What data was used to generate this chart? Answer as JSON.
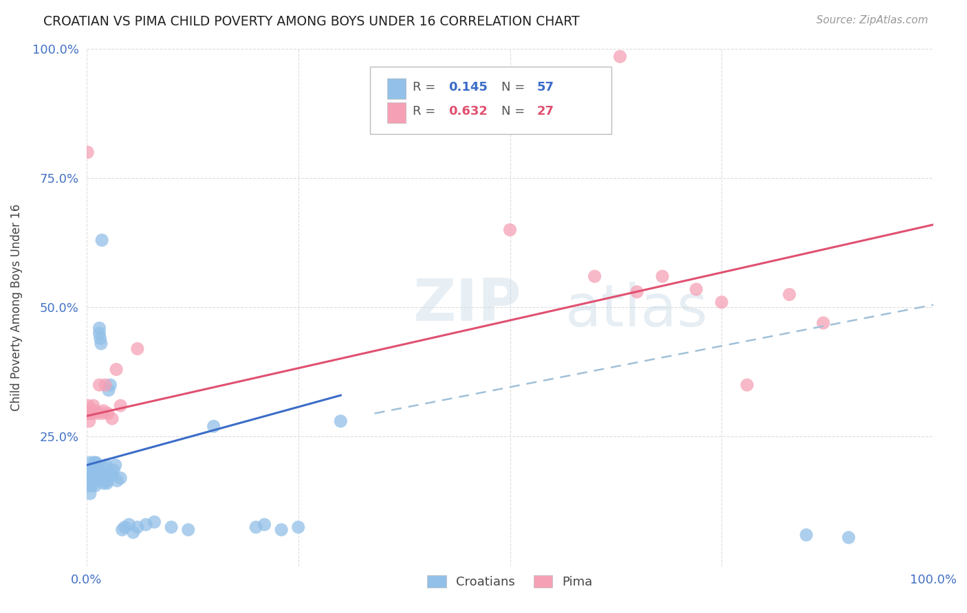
{
  "title": "CROATIAN VS PIMA CHILD POVERTY AMONG BOYS UNDER 16 CORRELATION CHART",
  "source": "Source: ZipAtlas.com",
  "ylabel": "Child Poverty Among Boys Under 16",
  "xlim": [
    0,
    1
  ],
  "ylim": [
    0,
    1
  ],
  "xticks": [
    0,
    0.25,
    0.5,
    0.75,
    1.0
  ],
  "yticks": [
    0,
    0.25,
    0.5,
    0.75,
    1.0
  ],
  "xticklabels": [
    "0.0%",
    "",
    "",
    "",
    "100.0%"
  ],
  "yticklabels": [
    "",
    "25.0%",
    "50.0%",
    "75.0%",
    "100.0%"
  ],
  "croatians_color": "#92C0E8",
  "pima_color": "#F5A0B5",
  "cr_line_color": "#3B6CC8",
  "pima_line_color": "#E05070",
  "dash_line_color": "#A0C0D8",
  "cr_R": "0.145",
  "cr_N": "57",
  "pima_R": "0.632",
  "pima_N": "27",
  "cr_line_x0": 0.0,
  "cr_line_y0": 0.195,
  "cr_line_x1": 0.3,
  "cr_line_y1": 0.33,
  "pima_line_x0": 0.0,
  "pima_line_y0": 0.29,
  "pima_line_x1": 1.0,
  "pima_line_y1": 0.66,
  "dash_line_x0": 0.34,
  "dash_line_y0": 0.295,
  "dash_line_x1": 1.0,
  "dash_line_y1": 0.505,
  "watermark_zip": "ZIP",
  "watermark_atlas": "atlas",
  "bg_color": "#FFFFFF",
  "grid_color": "#DDDDDD",
  "tick_color": "#4472C4",
  "cr_scatter_x": [
    0.002,
    0.003,
    0.004,
    0.004,
    0.005,
    0.005,
    0.006,
    0.007,
    0.008,
    0.008,
    0.009,
    0.009,
    0.01,
    0.01,
    0.011,
    0.012,
    0.012,
    0.013,
    0.013,
    0.014,
    0.015,
    0.015,
    0.016,
    0.017,
    0.018,
    0.019,
    0.02,
    0.021,
    0.022,
    0.023,
    0.024,
    0.025,
    0.026,
    0.027,
    0.028,
    0.03,
    0.032,
    0.034,
    0.036,
    0.04,
    0.042,
    0.045,
    0.05,
    0.055,
    0.06,
    0.07,
    0.08,
    0.1,
    0.12,
    0.15,
    0.2,
    0.21,
    0.23,
    0.25,
    0.3,
    0.85,
    0.9
  ],
  "cr_scatter_y": [
    0.155,
    0.175,
    0.14,
    0.2,
    0.165,
    0.185,
    0.155,
    0.175,
    0.165,
    0.19,
    0.175,
    0.2,
    0.185,
    0.155,
    0.2,
    0.175,
    0.195,
    0.165,
    0.185,
    0.175,
    0.45,
    0.46,
    0.44,
    0.43,
    0.17,
    0.18,
    0.16,
    0.19,
    0.17,
    0.195,
    0.16,
    0.165,
    0.34,
    0.18,
    0.35,
    0.175,
    0.185,
    0.195,
    0.165,
    0.17,
    0.07,
    0.075,
    0.08,
    0.065,
    0.075,
    0.08,
    0.085,
    0.075,
    0.07,
    0.27,
    0.075,
    0.08,
    0.07,
    0.075,
    0.28,
    0.06,
    0.055
  ],
  "pima_scatter_x": [
    0.001,
    0.002,
    0.003,
    0.004,
    0.005,
    0.006,
    0.008,
    0.01,
    0.012,
    0.015,
    0.018,
    0.02,
    0.022,
    0.025,
    0.03,
    0.035,
    0.04,
    0.06,
    0.5,
    0.6,
    0.65,
    0.68,
    0.72,
    0.75,
    0.78,
    0.83,
    0.87
  ],
  "pima_scatter_y": [
    0.295,
    0.31,
    0.28,
    0.295,
    0.3,
    0.295,
    0.31,
    0.3,
    0.295,
    0.35,
    0.295,
    0.3,
    0.35,
    0.295,
    0.285,
    0.38,
    0.31,
    0.42,
    0.65,
    0.56,
    0.53,
    0.56,
    0.535,
    0.51,
    0.35,
    0.525,
    0.47
  ]
}
